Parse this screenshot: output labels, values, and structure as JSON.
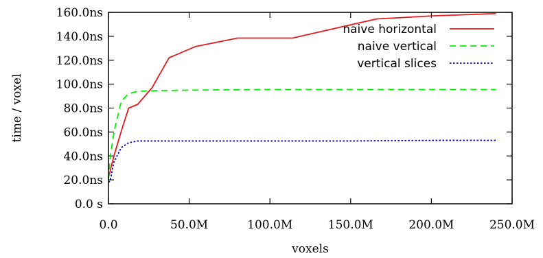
{
  "chart_data": {
    "type": "line",
    "xlabel": "voxels",
    "ylabel": "time / voxel",
    "xlim": [
      0,
      250000000
    ],
    "ylim": [
      0,
      160
    ],
    "x_ticks": [
      {
        "value": 0,
        "label": "0.0"
      },
      {
        "value": 50000000,
        "label": "50.0M"
      },
      {
        "value": 100000000,
        "label": "100.0M"
      },
      {
        "value": 150000000,
        "label": "150.0M"
      },
      {
        "value": 200000000,
        "label": "200.0M"
      },
      {
        "value": 250000000,
        "label": "250.0M"
      }
    ],
    "y_ticks": [
      {
        "value": 0,
        "label": "0.0 s"
      },
      {
        "value": 20,
        "label": "20.0ns"
      },
      {
        "value": 40,
        "label": "40.0ns"
      },
      {
        "value": 60,
        "label": "60.0ns"
      },
      {
        "value": 80,
        "label": "80.0ns"
      },
      {
        "value": 100,
        "label": "100.0ns"
      },
      {
        "value": 120,
        "label": "120.0ns"
      },
      {
        "value": 140,
        "label": "140.0ns"
      },
      {
        "value": 160,
        "label": "160.0ns"
      }
    ],
    "legend_position": "top-right",
    "grid": false,
    "series": [
      {
        "name": "naive horizontal",
        "color": "#e41a1c",
        "dash": "solid",
        "x": [
          0,
          1000000,
          3400000,
          8000000,
          12500000,
          18000000,
          27000000,
          37500000,
          54000000,
          80000000,
          114000000,
          166000000,
          200000000,
          240000000
        ],
        "y": [
          22,
          27,
          40,
          61,
          80,
          83,
          97,
          122,
          131.5,
          138.5,
          138.5,
          154.5,
          157,
          159
        ]
      },
      {
        "name": "naive vertical",
        "color": "#00ee00",
        "dash": "dashed",
        "x": [
          0,
          1000000,
          3400000,
          8000000,
          12500000,
          18000000,
          27000000,
          50000000,
          100000000,
          150000000,
          200000000,
          240000000
        ],
        "y": [
          20,
          38,
          60,
          86,
          92,
          94,
          94.5,
          95,
          95.5,
          95.5,
          95.5,
          95.5
        ]
      },
      {
        "name": "vertical slices",
        "color": "#0000cc",
        "dash": "dotted",
        "x": [
          0,
          1000000,
          3400000,
          8000000,
          12500000,
          18000000,
          27000000,
          50000000,
          100000000,
          150000000,
          200000000,
          240000000
        ],
        "y": [
          18,
          19,
          35,
          47,
          51,
          52.5,
          52.5,
          52.5,
          52.5,
          52.5,
          53,
          53
        ]
      }
    ]
  }
}
